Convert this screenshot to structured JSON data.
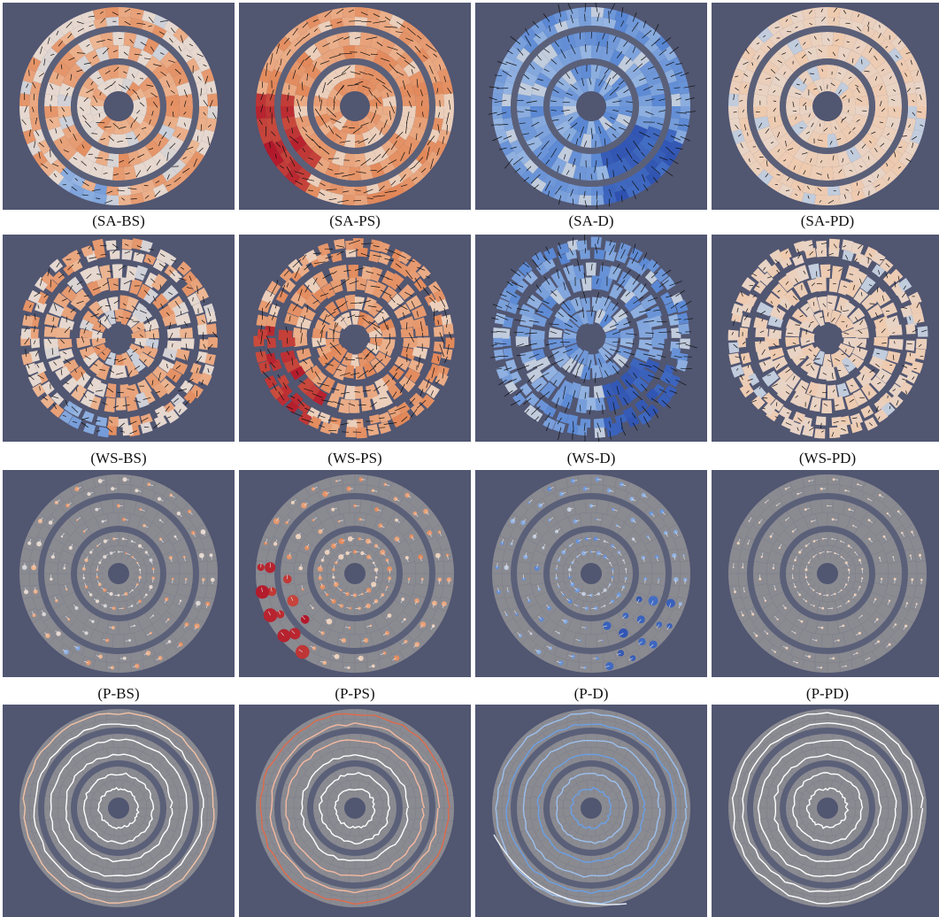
{
  "figure": {
    "rows": [
      {
        "style": "solid",
        "panels": [
          {
            "label": "(SA-BS)",
            "scheme": "mixed-orange"
          },
          {
            "label": "(SA-PS)",
            "scheme": "strong-orange"
          },
          {
            "label": "(SA-D)",
            "scheme": "blue"
          },
          {
            "label": "(SA-PD)",
            "scheme": "pale-orange"
          }
        ]
      },
      {
        "style": "broken",
        "panels": [
          {
            "label": "(WS-BS)",
            "scheme": "mixed-orange"
          },
          {
            "label": "(WS-PS)",
            "scheme": "strong-orange"
          },
          {
            "label": "(WS-D)",
            "scheme": "blue"
          },
          {
            "label": "(WS-PD)",
            "scheme": "pale-orange"
          }
        ]
      },
      {
        "style": "points",
        "panels": [
          {
            "label": "(P-BS)",
            "scheme": "mixed-orange"
          },
          {
            "label": "(P-PS)",
            "scheme": "strong-orange"
          },
          {
            "label": "(P-D)",
            "scheme": "blue"
          },
          {
            "label": "(P-PD)",
            "scheme": "pale-orange"
          }
        ]
      },
      {
        "style": "lines",
        "panels": [
          {
            "label": "",
            "scheme": "mixed-orange"
          },
          {
            "label": "",
            "scheme": "strong-orange"
          },
          {
            "label": "",
            "scheme": "blue"
          },
          {
            "label": "",
            "scheme": "pale-orange"
          }
        ]
      }
    ],
    "colors": {
      "background": "#515671",
      "disk_gray": "#8a8a91",
      "ring_gap": "#5b6079",
      "orange_strong": "#b2182b",
      "orange": "#e08050",
      "orange_light": "#f0c6a6",
      "neutral": "#e6d8cf",
      "blue_light": "#a9c4e6",
      "blue": "#4f7fd1",
      "blue_dark": "#2747a8"
    }
  }
}
